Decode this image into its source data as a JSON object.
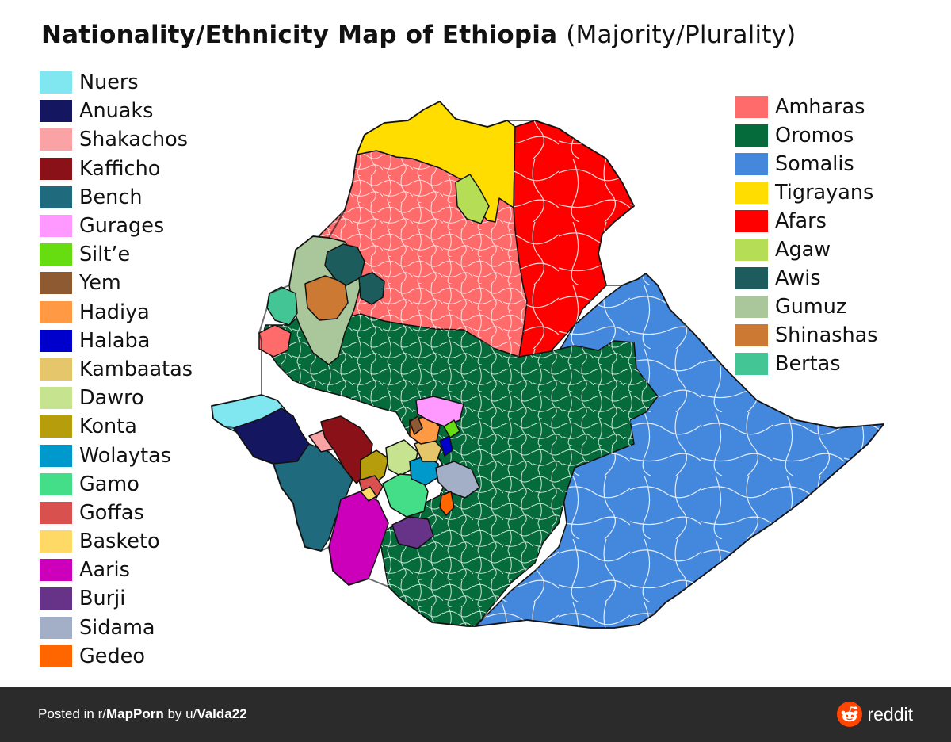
{
  "title": {
    "main": "Nationality/Ethnicity Map of Ethiopia",
    "sub": "(Majority/Plurality)"
  },
  "legend_left": [
    {
      "label": "Nuers",
      "color": "#80E6F0"
    },
    {
      "label": "Anuaks",
      "color": "#141660"
    },
    {
      "label": "Shakachos",
      "color": "#F9A3A5"
    },
    {
      "label": "Kafficho",
      "color": "#8B1118"
    },
    {
      "label": "Bench",
      "color": "#1F6B7D"
    },
    {
      "label": "Gurages",
      "color": "#FF99FF"
    },
    {
      "label": "Silt’e",
      "color": "#66DD11"
    },
    {
      "label": "Yem",
      "color": "#8E5A31"
    },
    {
      "label": "Hadiya",
      "color": "#FF9944"
    },
    {
      "label": "Halaba",
      "color": "#0000CC"
    },
    {
      "label": "Kambaatas",
      "color": "#E5C66A"
    },
    {
      "label": "Dawro",
      "color": "#C6E48F"
    },
    {
      "label": "Konta",
      "color": "#B59D0C"
    },
    {
      "label": "Wolaytas",
      "color": "#0099CC"
    },
    {
      "label": "Gamo",
      "color": "#44DD88"
    },
    {
      "label": "Goffas",
      "color": "#D9514E"
    },
    {
      "label": "Basketo",
      "color": "#FFD966"
    },
    {
      "label": "Aaris",
      "color": "#CC00BB"
    },
    {
      "label": "Burji",
      "color": "#663388"
    },
    {
      "label": "Sidama",
      "color": "#A2AFC7"
    },
    {
      "label": "Gedeo",
      "color": "#FF6600"
    }
  ],
  "legend_right": [
    {
      "label": "Amharas",
      "color": "#FF6B6B"
    },
    {
      "label": "Oromos",
      "color": "#056B3A"
    },
    {
      "label": "Somalis",
      "color": "#4488DD"
    },
    {
      "label": "Tigrayans",
      "color": "#FFDD00"
    },
    {
      "label": "Afars",
      "color": "#FF0000"
    },
    {
      "label": "Agaw",
      "color": "#B5DD55"
    },
    {
      "label": "Awis",
      "color": "#1D5C5C"
    },
    {
      "label": "Gumuz",
      "color": "#A9C79A"
    },
    {
      "label": "Shinashas",
      "color": "#CC7A33"
    },
    {
      "label": "Bertas",
      "color": "#44C596"
    }
  ],
  "footer": {
    "posted_prefix": "Posted in r/",
    "subreddit": "MapPorn",
    "by_prefix": " by u/",
    "username": "Valda22",
    "brand": "reddit",
    "brand_color": "#FF4500"
  }
}
